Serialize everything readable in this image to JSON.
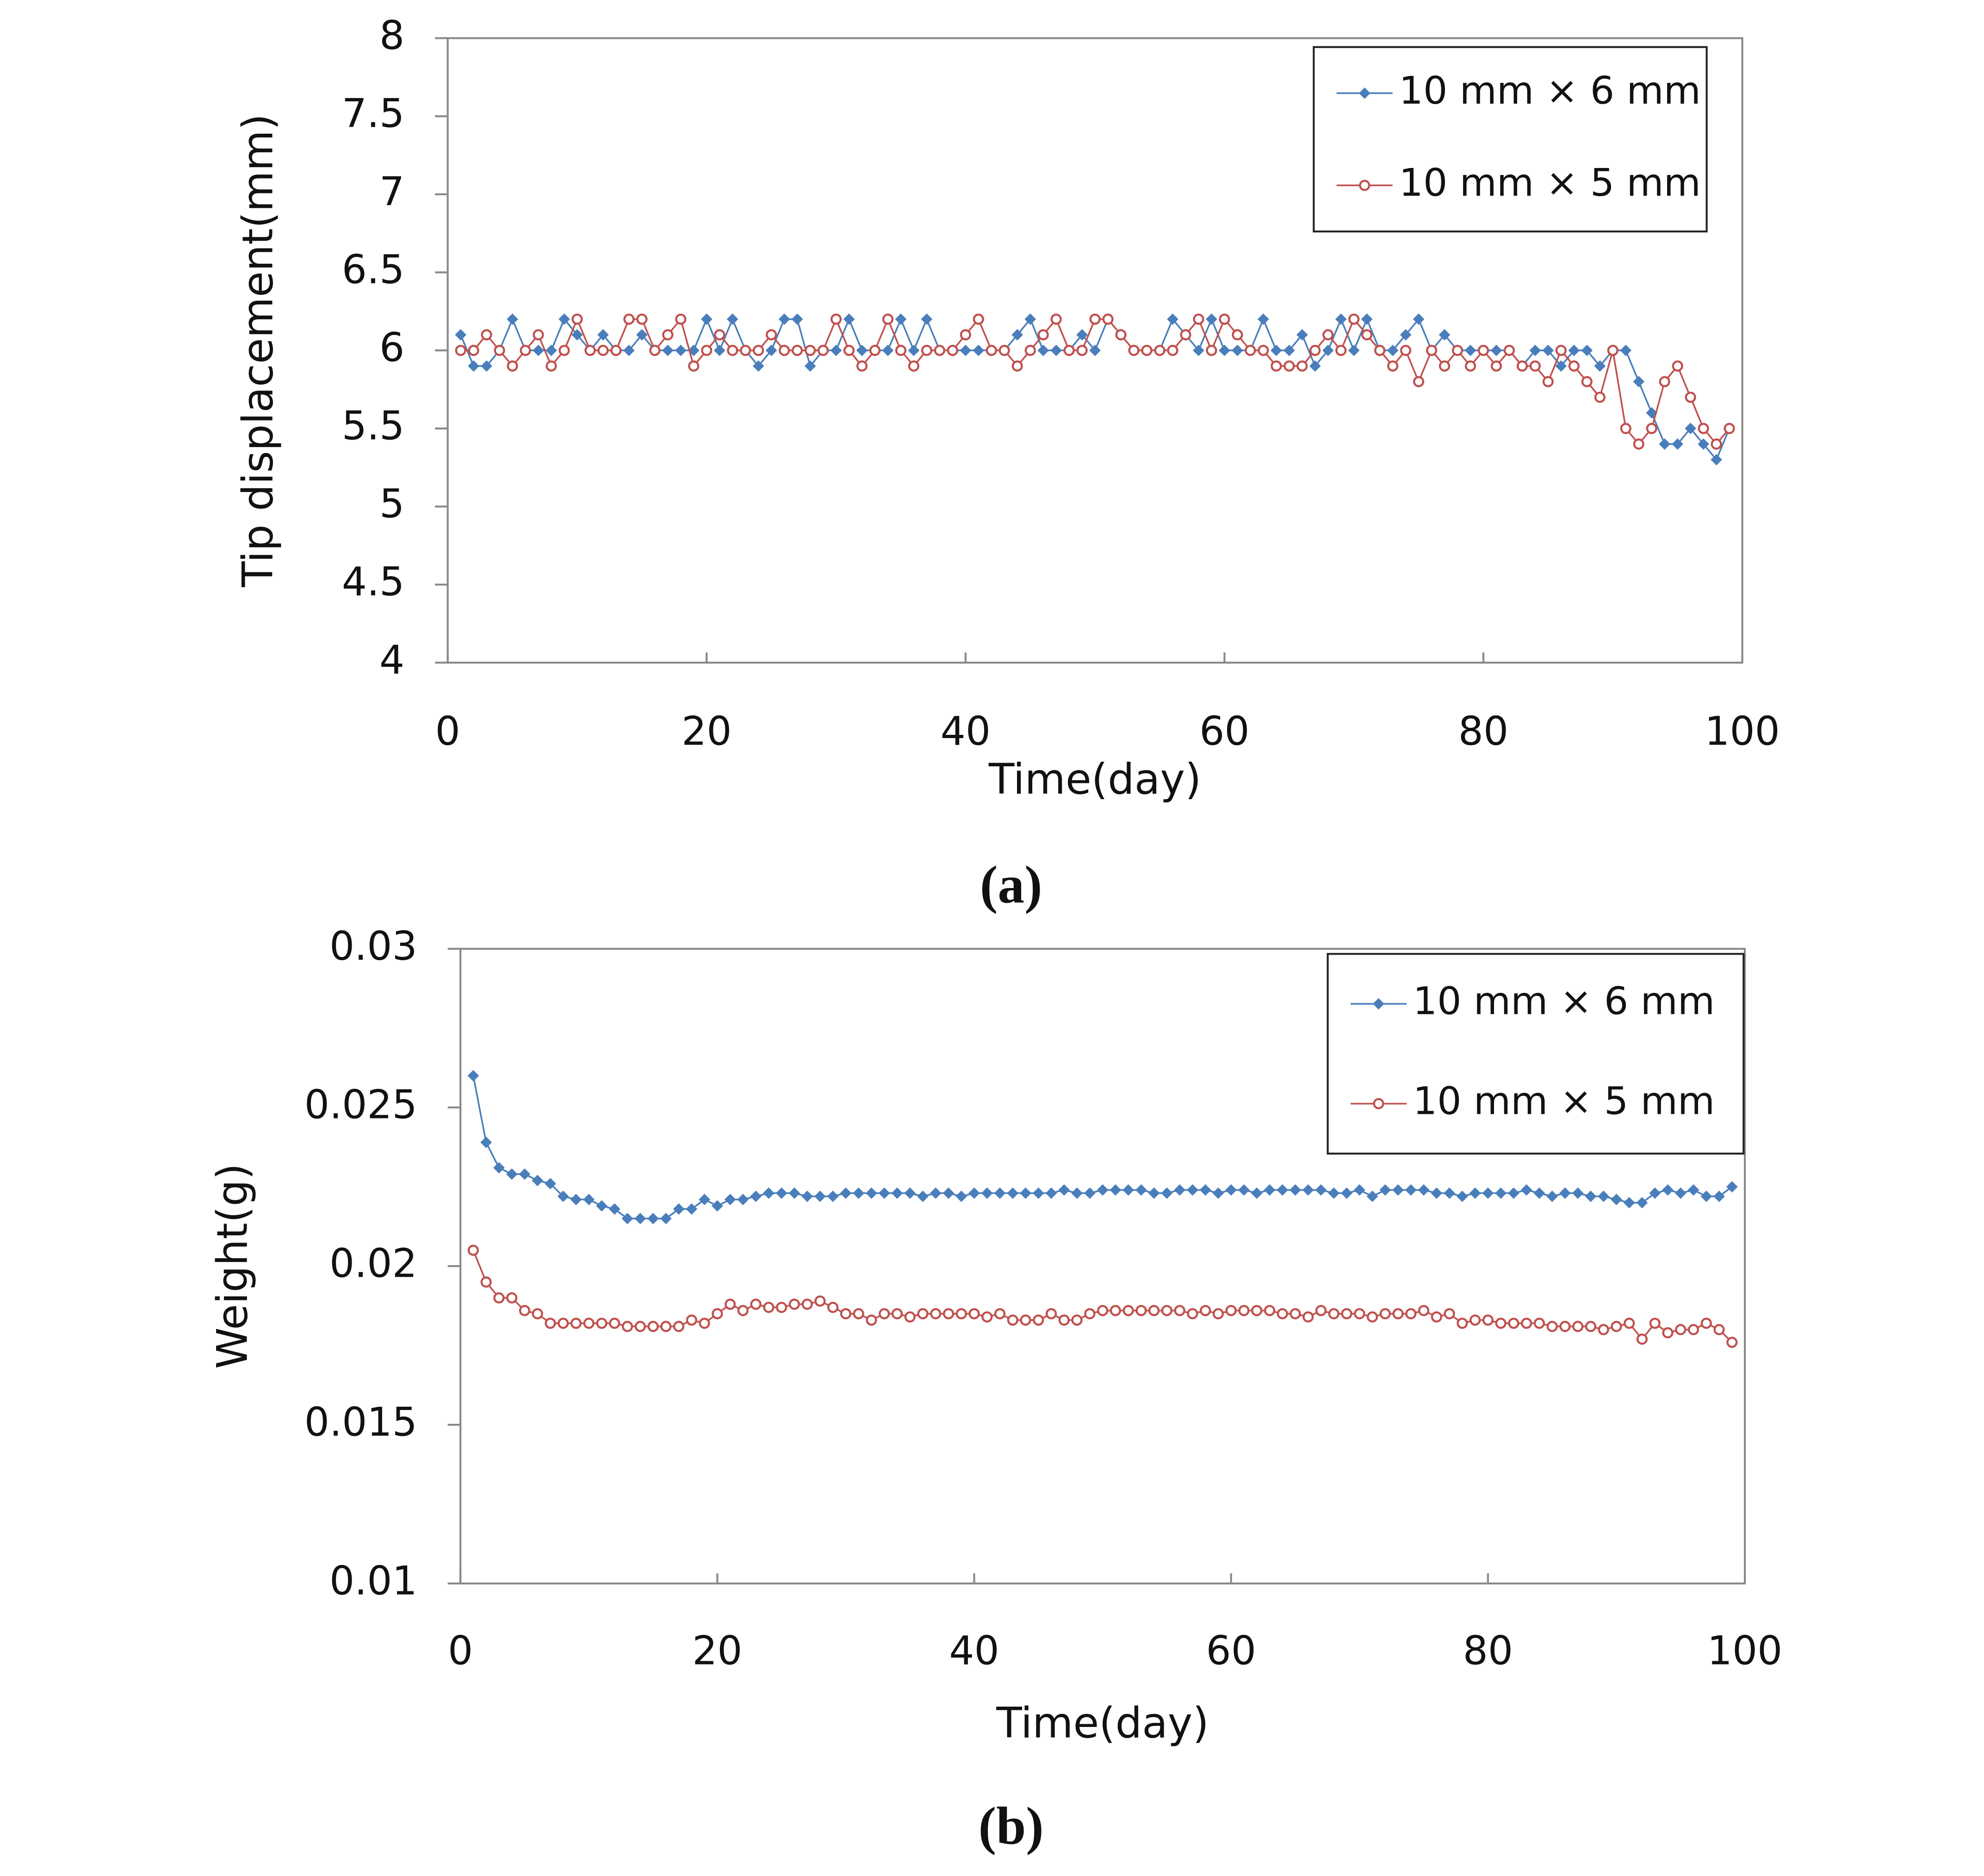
{
  "chart_data": [
    {
      "type": "line",
      "panel_label": "(a)",
      "x_label": "Time(day)",
      "y_label": "Tip displacement(mm)",
      "xlim": [
        0,
        100
      ],
      "xticks": [
        0,
        20,
        40,
        60,
        80,
        100
      ],
      "ylim": [
        4,
        8
      ],
      "yticks": [
        4,
        4.5,
        5,
        5.5,
        6,
        6.5,
        7,
        7.5,
        8
      ],
      "legend": "upper right",
      "x": [
        1,
        2,
        3,
        4,
        5,
        6,
        7,
        8,
        9,
        10,
        11,
        12,
        13,
        14,
        15,
        16,
        17,
        18,
        19,
        20,
        21,
        22,
        23,
        24,
        25,
        26,
        27,
        28,
        29,
        30,
        31,
        32,
        33,
        34,
        35,
        36,
        37,
        38,
        39,
        40,
        41,
        42,
        43,
        44,
        45,
        46,
        47,
        48,
        49,
        50,
        51,
        52,
        53,
        54,
        55,
        56,
        57,
        58,
        59,
        60,
        61,
        62,
        63,
        64,
        65,
        66,
        67,
        68,
        69,
        70,
        71,
        72,
        73,
        74,
        75,
        76,
        77,
        78,
        79,
        80,
        81,
        82,
        83,
        84,
        85,
        86,
        87,
        88,
        89,
        90,
        91,
        92,
        93,
        94,
        95,
        96,
        97,
        98,
        99
      ],
      "series": [
        {
          "name": "10 mm × 6 mm",
          "color": "#4a7ebb",
          "marker": "diamond",
          "values": [
            6.1,
            5.9,
            5.9,
            6,
            6.2,
            6,
            6,
            6,
            6.2,
            6.1,
            6,
            6.1,
            6,
            6,
            6.1,
            6,
            6,
            6,
            6,
            6.2,
            6,
            6.2,
            6,
            5.9,
            6,
            6.2,
            6.2,
            5.9,
            6,
            6,
            6.2,
            6,
            6,
            6,
            6.2,
            6,
            6.2,
            6,
            6,
            6,
            6,
            6,
            6,
            6.1,
            6.2,
            6,
            6,
            6,
            6.1,
            6,
            6.2,
            6.1,
            6,
            6,
            6,
            6.2,
            6.1,
            6,
            6.2,
            6,
            6,
            6,
            6.2,
            6,
            6,
            6.1,
            5.9,
            6,
            6.2,
            6,
            6.2,
            6,
            6,
            6.1,
            6.2,
            6,
            6.1,
            6,
            6,
            6,
            6,
            6,
            5.9,
            6,
            6,
            5.9,
            6,
            6,
            5.9,
            6,
            6,
            5.8,
            5.6,
            5.4,
            5.4,
            5.5,
            5.4,
            5.3,
            5.5
          ]
        },
        {
          "name": "10 mm × 5 mm",
          "color": "#c0504d",
          "marker": "circle",
          "values": [
            6,
            6,
            6.1,
            6,
            5.9,
            6,
            6.1,
            5.9,
            6,
            6.2,
            6,
            6,
            6,
            6.2,
            6.2,
            6,
            6.1,
            6.2,
            5.9,
            6,
            6.1,
            6,
            6,
            6,
            6.1,
            6,
            6,
            6,
            6,
            6.2,
            6,
            5.9,
            6,
            6.2,
            6,
            5.9,
            6,
            6,
            6,
            6.1,
            6.2,
            6,
            6,
            5.9,
            6,
            6.1,
            6.2,
            6,
            6,
            6.2,
            6.2,
            6.1,
            6,
            6,
            6,
            6,
            6.1,
            6.2,
            6,
            6.2,
            6.1,
            6,
            6,
            5.9,
            5.9,
            5.9,
            6,
            6.1,
            6,
            6.2,
            6.1,
            6,
            5.9,
            6,
            5.8,
            6,
            5.9,
            6,
            5.9,
            6,
            5.9,
            6,
            5.9,
            5.9,
            5.8,
            6,
            5.9,
            5.8,
            5.7,
            6,
            5.5,
            5.4,
            5.5,
            5.8,
            5.9,
            5.7,
            5.5,
            5.4,
            5.5
          ]
        }
      ]
    },
    {
      "type": "line",
      "panel_label": "(b)",
      "x_label": "Time(day)",
      "y_label": "Weight(g)",
      "xlim": [
        0,
        100
      ],
      "xticks": [
        0,
        20,
        40,
        60,
        80,
        100
      ],
      "ylim": [
        0.01,
        0.03
      ],
      "yticks": [
        0.01,
        0.015,
        0.02,
        0.025,
        0.03
      ],
      "legend": "upper right",
      "x": [
        1,
        2,
        3,
        4,
        5,
        6,
        7,
        8,
        9,
        10,
        11,
        12,
        13,
        14,
        15,
        16,
        17,
        18,
        19,
        20,
        21,
        22,
        23,
        24,
        25,
        26,
        27,
        28,
        29,
        30,
        31,
        32,
        33,
        34,
        35,
        36,
        37,
        38,
        39,
        40,
        41,
        42,
        43,
        44,
        45,
        46,
        47,
        48,
        49,
        50,
        51,
        52,
        53,
        54,
        55,
        56,
        57,
        58,
        59,
        60,
        61,
        62,
        63,
        64,
        65,
        66,
        67,
        68,
        69,
        70,
        71,
        72,
        73,
        74,
        75,
        76,
        77,
        78,
        79,
        80,
        81,
        82,
        83,
        84,
        85,
        86,
        87,
        88,
        89,
        90,
        91,
        92,
        93,
        94,
        95,
        96,
        97,
        98,
        99
      ],
      "series": [
        {
          "name": "10 mm × 6 mm",
          "color": "#4a7ebb",
          "marker": "diamond",
          "values": [
            0.026,
            0.0239,
            0.0231,
            0.0229,
            0.0229,
            0.0227,
            0.0226,
            0.0222,
            0.0221,
            0.0221,
            0.0219,
            0.0218,
            0.0215,
            0.0215,
            0.0215,
            0.0215,
            0.0218,
            0.0218,
            0.0221,
            0.0219,
            0.0221,
            0.0221,
            0.0222,
            0.0223,
            0.0223,
            0.0223,
            0.0222,
            0.0222,
            0.0222,
            0.0223,
            0.0223,
            0.0223,
            0.0223,
            0.0223,
            0.0223,
            0.0222,
            0.0223,
            0.0223,
            0.0222,
            0.0223,
            0.0223,
            0.0223,
            0.0223,
            0.0223,
            0.0223,
            0.0223,
            0.0224,
            0.0223,
            0.0223,
            0.0224,
            0.0224,
            0.0224,
            0.0224,
            0.0223,
            0.0223,
            0.0224,
            0.0224,
            0.0224,
            0.0223,
            0.0224,
            0.0224,
            0.0223,
            0.0224,
            0.0224,
            0.0224,
            0.0224,
            0.0224,
            0.0223,
            0.0223,
            0.0224,
            0.0222,
            0.0224,
            0.0224,
            0.0224,
            0.0224,
            0.0223,
            0.0223,
            0.0222,
            0.0223,
            0.0223,
            0.0223,
            0.0223,
            0.0224,
            0.0223,
            0.0222,
            0.0223,
            0.0223,
            0.0222,
            0.0222,
            0.0221,
            0.022,
            0.022,
            0.0223,
            0.0224,
            0.0223,
            0.0224,
            0.0222,
            0.0222,
            0.0225
          ]
        },
        {
          "name": "10 mm × 5 mm",
          "color": "#c0504d",
          "marker": "circle",
          "values": [
            0.0205,
            0.0195,
            0.019,
            0.019,
            0.0186,
            0.0185,
            0.0182,
            0.0182,
            0.0182,
            0.0182,
            0.0182,
            0.0182,
            0.0181,
            0.0181,
            0.0181,
            0.0181,
            0.0181,
            0.0183,
            0.0182,
            0.0185,
            0.0188,
            0.0186,
            0.0188,
            0.0187,
            0.0187,
            0.0188,
            0.0188,
            0.0189,
            0.0187,
            0.0185,
            0.0185,
            0.0183,
            0.0185,
            0.0185,
            0.0184,
            0.0185,
            0.0185,
            0.0185,
            0.0185,
            0.0185,
            0.0184,
            0.0185,
            0.0183,
            0.0183,
            0.0183,
            0.0185,
            0.0183,
            0.0183,
            0.0185,
            0.0186,
            0.0186,
            0.0186,
            0.0186,
            0.0186,
            0.0186,
            0.0186,
            0.0185,
            0.0186,
            0.0185,
            0.0186,
            0.0186,
            0.0186,
            0.0186,
            0.0185,
            0.0185,
            0.0184,
            0.0186,
            0.0185,
            0.0185,
            0.0185,
            0.0184,
            0.0185,
            0.0185,
            0.0185,
            0.0186,
            0.0184,
            0.0185,
            0.0182,
            0.0183,
            0.0183,
            0.0182,
            0.0182,
            0.0182,
            0.0182,
            0.0181,
            0.0181,
            0.0181,
            0.0181,
            0.018,
            0.0181,
            0.0182,
            0.0177,
            0.0182,
            0.0179,
            0.018,
            0.018,
            0.0182,
            0.018,
            0.0176
          ]
        }
      ]
    }
  ]
}
